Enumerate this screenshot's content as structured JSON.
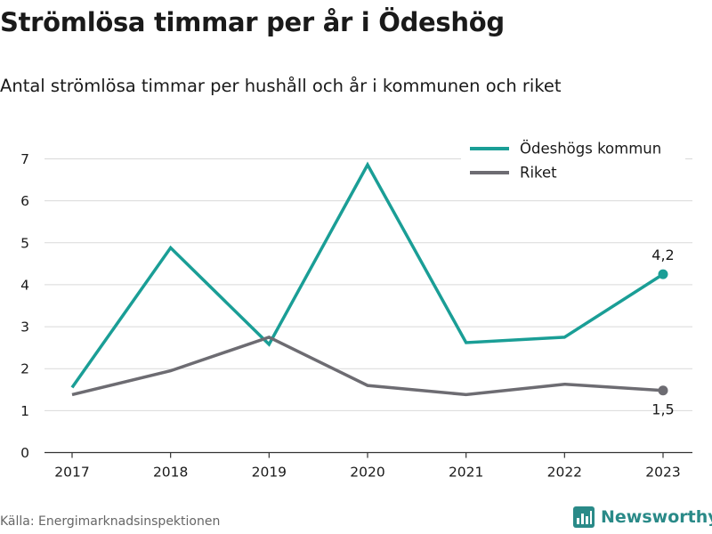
{
  "header": {
    "title": "Strömlösa timmar per år i Ödeshög",
    "subtitle": "Antal strömlösa timmar per hushåll och år i kommunen och riket"
  },
  "footer": {
    "source": "Källa: Energimarknadsinspektionen",
    "brand": "Newsworthy",
    "brand_icon": "bar-chart-logo-icon"
  },
  "colors": {
    "kommun": "#1a9e96",
    "riket": "#6d6c72",
    "grid": "#d9d9d9",
    "axis": "#333333",
    "brand": "#2a8a88"
  },
  "chart_data": {
    "type": "line",
    "x": [
      "2017",
      "2018",
      "2019",
      "2020",
      "2021",
      "2022",
      "2023"
    ],
    "series": [
      {
        "name": "Ödeshögs kommun",
        "values": [
          1.55,
          4.88,
          2.58,
          6.86,
          2.62,
          2.75,
          4.25
        ],
        "end_label": "4,2"
      },
      {
        "name": "Riket",
        "values": [
          1.38,
          1.95,
          2.75,
          1.6,
          1.38,
          1.63,
          1.48
        ],
        "end_label": "1,5"
      }
    ],
    "yticks": [
      "0",
      "1",
      "2",
      "3",
      "4",
      "5",
      "6",
      "7"
    ],
    "ylim": [
      0,
      7
    ],
    "grid": true,
    "legend": "top-right"
  }
}
